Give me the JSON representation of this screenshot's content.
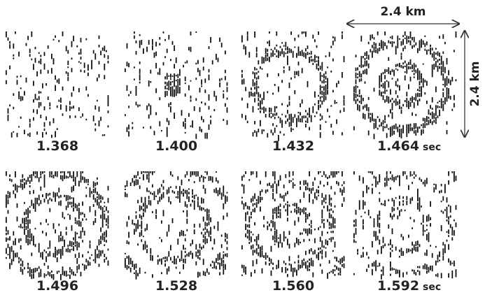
{
  "scale": {
    "horizontal": "2.4 km",
    "vertical": "2.4 km"
  },
  "panels": [
    {
      "time": "1.368"
    },
    {
      "time": "1.400"
    },
    {
      "time": "1.432"
    },
    {
      "time": "1.464",
      "unit": "sec"
    },
    {
      "time": "1.496"
    },
    {
      "time": "1.528"
    },
    {
      "time": "1.560"
    },
    {
      "time": "1.592",
      "unit": "sec"
    }
  ]
}
